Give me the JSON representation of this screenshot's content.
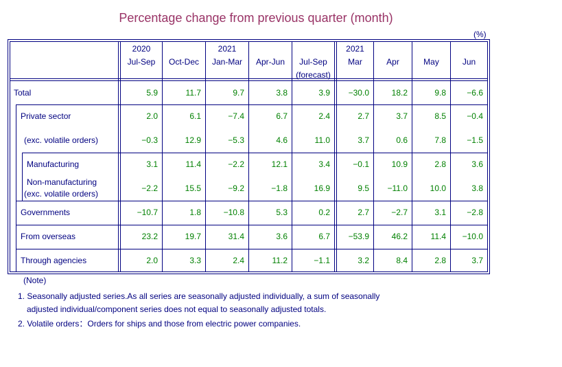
{
  "title": "Percentage change from previous quarter (month)",
  "unit": "(%)",
  "columns": [
    {
      "line1": "2020",
      "line2": "Jul-Sep",
      "line3": ""
    },
    {
      "line1": "",
      "line2": "Oct-Dec",
      "line3": ""
    },
    {
      "line1": "2021",
      "line2": "Jan-Mar",
      "line3": ""
    },
    {
      "line1": "",
      "line2": "Apr-Jun",
      "line3": ""
    },
    {
      "line1": "",
      "line2": "Jul-Sep",
      "line3": "(forecast)"
    },
    {
      "line1": "2021",
      "line2": "Mar",
      "line3": ""
    },
    {
      "line1": "",
      "line2": "Apr",
      "line3": ""
    },
    {
      "line1": "",
      "line2": "May",
      "line3": ""
    },
    {
      "line1": "",
      "line2": "Jun",
      "line3": ""
    }
  ],
  "rows": [
    {
      "label": "Total",
      "values": [
        "5.9",
        "11.7",
        "9.7",
        "3.8",
        "3.9",
        "−30.0",
        "18.2",
        "9.8",
        "−6.6"
      ]
    },
    {
      "label": "Private sector",
      "values": [
        "2.0",
        "6.1",
        "−7.4",
        "6.7",
        "2.4",
        "2.7",
        "3.7",
        "8.5",
        "−0.4"
      ]
    },
    {
      "label": "(exc. volatile orders)",
      "values": [
        "−0.3",
        "12.9",
        "−5.3",
        "4.6",
        "11.0",
        "3.7",
        "0.6",
        "7.8",
        "−1.5"
      ]
    },
    {
      "label": "Manufacturing",
      "values": [
        "3.1",
        "11.4",
        "−2.2",
        "12.1",
        "3.4",
        "−0.1",
        "10.9",
        "2.8",
        "3.6"
      ]
    },
    {
      "label": "Non-manufacturing",
      "label2": "(exc. volatile orders)",
      "values": [
        "−2.2",
        "15.5",
        "−9.2",
        "−1.8",
        "16.9",
        "9.5",
        "−11.0",
        "10.0",
        "3.8"
      ]
    },
    {
      "label": "Governments",
      "values": [
        "−10.7",
        "1.8",
        "−10.8",
        "5.3",
        "0.2",
        "2.7",
        "−2.7",
        "3.1",
        "−2.8"
      ]
    },
    {
      "label": "From overseas",
      "values": [
        "23.2",
        "19.7",
        "31.4",
        "3.6",
        "6.7",
        "−53.9",
        "46.2",
        "11.4",
        "−10.0"
      ]
    },
    {
      "label": "Through agencies",
      "values": [
        "2.0",
        "3.3",
        "2.4",
        "11.2",
        "−1.1",
        "3.2",
        "8.4",
        "2.8",
        "3.7"
      ]
    }
  ],
  "notes": {
    "heading": "(Note)",
    "note1_line1": "1. Seasonally adjusted series.As all series are seasonally adjusted individually,  a sum of seasonally",
    "note1_line2": "adjusted individual/component series does not equal to seasonally adjusted totals.",
    "note2": "2. Volatile orders：Orders for ships and those from electric power companies."
  },
  "colors": {
    "border": "#000080",
    "text": "#000080",
    "values": "#008000",
    "title": "#993366"
  }
}
